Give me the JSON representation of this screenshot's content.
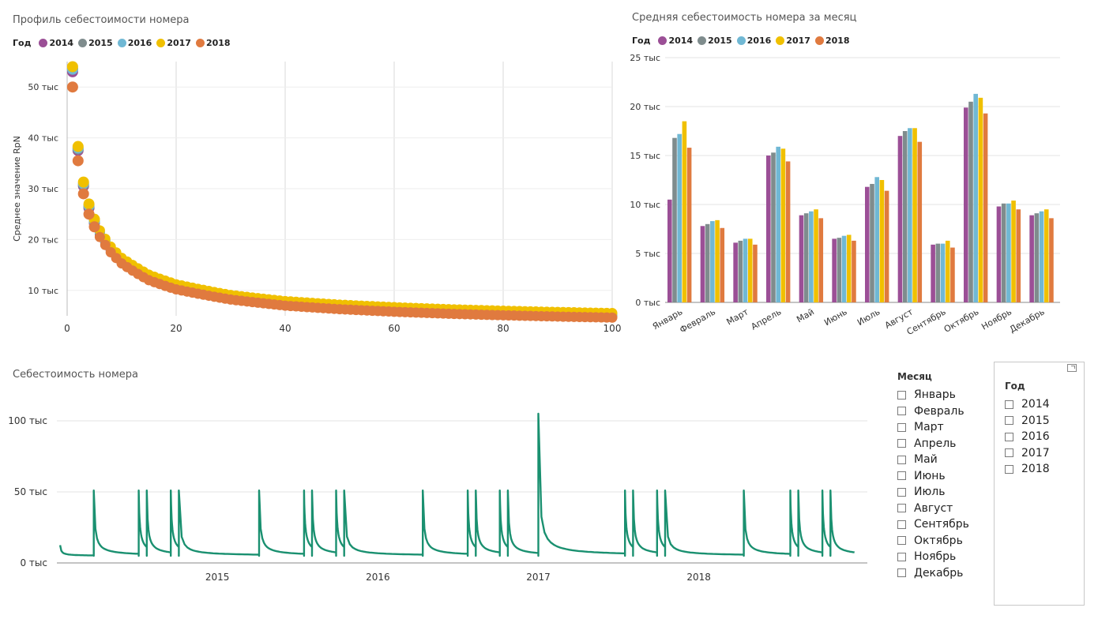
{
  "colors": {
    "2014": "#9b4f96",
    "2015": "#7f8c8d",
    "2016": "#70b8d4",
    "2017": "#f0c000",
    "2018": "#e07a3f",
    "line": "#1a9070",
    "grid": "#d9d9d9"
  },
  "legend": {
    "title": "Год",
    "years": [
      "2014",
      "2015",
      "2016",
      "2017",
      "2018"
    ]
  },
  "chart_data": [
    {
      "id": "profile",
      "type": "scatter",
      "title": "Профиль себестоимости номера",
      "ylabel": "Среднее значение RpN",
      "xlabel": "",
      "xlim": [
        0,
        100
      ],
      "ylim": [
        5000,
        55000
      ],
      "x_ticks": [
        "0",
        "20",
        "40",
        "60",
        "80",
        "100"
      ],
      "y_ticks": [
        "10 тыс",
        "20 тыс",
        "30 тыс",
        "40 тыс",
        "50 тыс"
      ],
      "grid": true,
      "series": [
        {
          "name": "2014",
          "points": [
            [
              1,
              53000
            ],
            [
              2,
              37500
            ],
            [
              3,
              30500
            ],
            [
              4,
              26200
            ],
            [
              5,
              23200
            ],
            [
              6,
              21000
            ],
            [
              8,
              17900
            ],
            [
              10,
              15700
            ],
            [
              15,
              12400
            ],
            [
              20,
              10500
            ],
            [
              30,
              8400
            ],
            [
              40,
              7200
            ],
            [
              50,
              6500
            ],
            [
              60,
              6000
            ],
            [
              70,
              5600
            ],
            [
              80,
              5300
            ],
            [
              90,
              5050
            ],
            [
              100,
              4850
            ]
          ]
        },
        {
          "name": "2015",
          "points": [
            [
              1,
              53500
            ],
            [
              2,
              37800
            ],
            [
              3,
              30800
            ],
            [
              4,
              26500
            ],
            [
              5,
              23500
            ],
            [
              6,
              21300
            ],
            [
              8,
              18100
            ],
            [
              10,
              15900
            ],
            [
              15,
              12600
            ],
            [
              20,
              10700
            ],
            [
              30,
              8600
            ],
            [
              40,
              7400
            ],
            [
              50,
              6700
            ],
            [
              60,
              6200
            ],
            [
              70,
              5800
            ],
            [
              80,
              5500
            ],
            [
              90,
              5250
            ],
            [
              100,
              5050
            ]
          ]
        },
        {
          "name": "2016",
          "points": [
            [
              1,
              53500
            ],
            [
              2,
              38000
            ],
            [
              3,
              31000
            ],
            [
              4,
              26700
            ],
            [
              5,
              23700
            ],
            [
              6,
              21500
            ],
            [
              8,
              18300
            ],
            [
              10,
              16100
            ],
            [
              15,
              12800
            ],
            [
              20,
              10900
            ],
            [
              30,
              8800
            ],
            [
              40,
              7600
            ],
            [
              50,
              6900
            ],
            [
              60,
              6400
            ],
            [
              70,
              6000
            ],
            [
              80,
              5700
            ],
            [
              90,
              5450
            ],
            [
              100,
              5250
            ]
          ]
        },
        {
          "name": "2017",
          "points": [
            [
              1,
              54000
            ],
            [
              2,
              38300
            ],
            [
              3,
              31300
            ],
            [
              4,
              27000
            ],
            [
              5,
              24000
            ],
            [
              6,
              21800
            ],
            [
              8,
              18600
            ],
            [
              10,
              16400
            ],
            [
              15,
              13100
            ],
            [
              20,
              11200
            ],
            [
              30,
              9100
            ],
            [
              40,
              7900
            ],
            [
              50,
              7200
            ],
            [
              60,
              6700
            ],
            [
              70,
              6300
            ],
            [
              80,
              6000
            ],
            [
              90,
              5750
            ],
            [
              100,
              5550
            ]
          ]
        },
        {
          "name": "2018",
          "points": [
            [
              1,
              50000
            ],
            [
              2,
              35500
            ],
            [
              3,
              29000
            ],
            [
              4,
              25000
            ],
            [
              5,
              22500
            ],
            [
              6,
              20500
            ],
            [
              8,
              17500
            ],
            [
              10,
              15300
            ],
            [
              15,
              12000
            ],
            [
              20,
              10200
            ],
            [
              30,
              8200
            ],
            [
              40,
              7000
            ],
            [
              50,
              6300
            ],
            [
              60,
              5800
            ],
            [
              70,
              5400
            ],
            [
              80,
              5100
            ],
            [
              90,
              4850
            ],
            [
              100,
              4650
            ]
          ]
        }
      ]
    },
    {
      "id": "monthly",
      "type": "bar",
      "title": "Средняя себестоимость номера за месяц",
      "xlabel": "",
      "ylabel": "",
      "ylim": [
        0,
        25000
      ],
      "y_ticks": [
        "0 тыс",
        "5 тыс",
        "10 тыс",
        "15 тыс",
        "20 тыс",
        "25 тыс"
      ],
      "grid": true,
      "categories": [
        "Январь",
        "Февраль",
        "Март",
        "Апрель",
        "Май",
        "Июнь",
        "Июль",
        "Август",
        "Сентябрь",
        "Октябрь",
        "Ноябрь",
        "Декабрь"
      ],
      "series": [
        {
          "name": "2014",
          "values": [
            10500,
            7800,
            6100,
            15000,
            8900,
            6500,
            11800,
            17000,
            5900,
            19900,
            9800,
            8900
          ]
        },
        {
          "name": "2015",
          "values": [
            16800,
            8000,
            6300,
            15300,
            9100,
            6600,
            12100,
            17500,
            6000,
            20500,
            10100,
            9100
          ]
        },
        {
          "name": "2016",
          "values": [
            17200,
            8300,
            6500,
            15900,
            9300,
            6800,
            12800,
            17800,
            6000,
            21300,
            10100,
            9300
          ]
        },
        {
          "name": "2017",
          "values": [
            18500,
            8400,
            6500,
            15700,
            9500,
            6900,
            12500,
            17800,
            6300,
            20900,
            10400,
            9500
          ]
        },
        {
          "name": "2018",
          "values": [
            15800,
            7600,
            5900,
            14400,
            8600,
            6300,
            11400,
            16400,
            5600,
            19300,
            9500,
            8600
          ]
        }
      ]
    },
    {
      "id": "series",
      "type": "line",
      "title": "Себестоимость номера",
      "xlabel": "",
      "ylabel": "",
      "ylim": [
        0,
        110000
      ],
      "y_ticks": [
        "0 тыс",
        "50 тыс",
        "100 тыс"
      ],
      "x_ticks": [
        "2015",
        "2016",
        "2017",
        "2018"
      ],
      "x_tick_positions_years": [
        2015.0,
        2016.0,
        2017.0,
        2018.0
      ],
      "xlim_years": [
        2014.0,
        2019.05
      ],
      "grid": true,
      "spike_years": [
        2014.23,
        2014.51,
        2014.56,
        2014.71,
        2014.76,
        2015.26,
        2015.54,
        2015.59,
        2015.74,
        2015.79,
        2016.28,
        2016.56,
        2016.61,
        2016.76,
        2016.81,
        2017.0,
        2017.54,
        2017.59,
        2017.74,
        2017.79,
        2018.28,
        2018.57,
        2018.62,
        2018.77,
        2018.82
      ],
      "spike_values": [
        51000,
        51000,
        51000,
        51000,
        51000,
        51000,
        51000,
        51000,
        51000,
        51000,
        51000,
        51000,
        51000,
        51000,
        51000,
        105000,
        51000,
        51000,
        51000,
        51000,
        51000,
        51000,
        51000,
        51000,
        51000
      ],
      "series": [
        {
          "name": "",
          "values": []
        }
      ]
    }
  ],
  "month_slicer": {
    "title": "Месяц",
    "items": [
      "Январь",
      "Февраль",
      "Март",
      "Апрель",
      "Май",
      "Июнь",
      "Июль",
      "Август",
      "Сентябрь",
      "Октябрь",
      "Ноябрь",
      "Декабрь"
    ]
  },
  "year_slicer": {
    "title": "Год",
    "items": [
      "2014",
      "2015",
      "2016",
      "2017",
      "2018"
    ]
  },
  "focus_icon": "focus-mode-icon"
}
